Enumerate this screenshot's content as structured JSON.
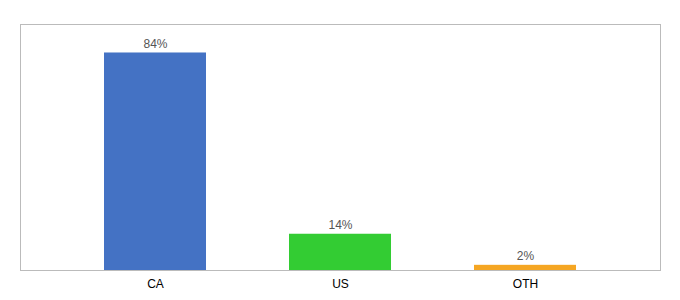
{
  "chart_data": {
    "type": "bar",
    "categories": [
      "CA",
      "US",
      "OTH"
    ],
    "values": [
      84,
      14,
      2
    ],
    "value_labels": [
      "84%",
      "14%",
      "2%"
    ],
    "colors": [
      "#4472c4",
      "#33cc33",
      "#f5a623"
    ],
    "ylim": [
      0,
      95
    ],
    "data_labels": true,
    "tick_labels": "x",
    "grid": false
  }
}
